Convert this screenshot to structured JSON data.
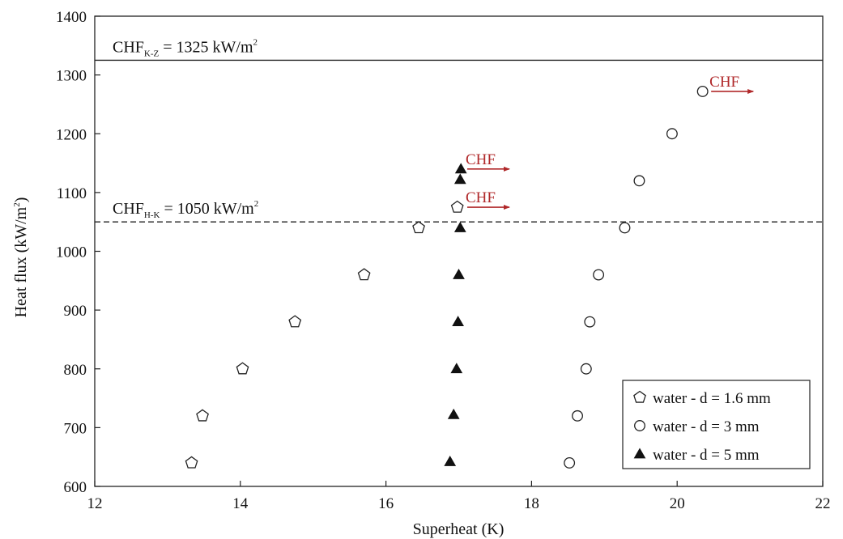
{
  "chart_data": {
    "type": "scatter",
    "xlabel": "Superheat (K)",
    "ylabel_main": "Heat flux (kW/m",
    "ylabel_sup": "2",
    "ylabel_end": ")",
    "xlim": [
      12,
      22
    ],
    "ylim": [
      600,
      1400
    ],
    "x_ticks": [
      "12",
      "14",
      "16",
      "18",
      "20",
      "22"
    ],
    "y_ticks": [
      "600",
      "700",
      "800",
      "900",
      "1000",
      "1100",
      "1200",
      "1300",
      "1400"
    ],
    "grid": false,
    "legend_position": "bottom-right",
    "series": [
      {
        "name": "water - d = 1.6 mm",
        "marker": "pentagon-open",
        "points": [
          [
            13.33,
            640
          ],
          [
            13.48,
            720
          ],
          [
            14.03,
            800
          ],
          [
            14.75,
            880
          ],
          [
            15.7,
            960
          ],
          [
            16.45,
            1040
          ],
          [
            16.98,
            1075
          ]
        ]
      },
      {
        "name": "water - d = 3 mm",
        "marker": "circle-open",
        "points": [
          [
            18.52,
            640
          ],
          [
            18.63,
            720
          ],
          [
            18.75,
            800
          ],
          [
            18.8,
            880
          ],
          [
            18.92,
            960
          ],
          [
            19.28,
            1040
          ],
          [
            19.48,
            1120
          ],
          [
            19.93,
            1200
          ],
          [
            20.35,
            1272
          ]
        ]
      },
      {
        "name": "water - d = 5 mm",
        "marker": "triangle-filled",
        "points": [
          [
            16.88,
            642
          ],
          [
            16.93,
            722
          ],
          [
            16.97,
            800
          ],
          [
            16.99,
            880
          ],
          [
            17.0,
            960
          ],
          [
            17.02,
            1040
          ],
          [
            17.02,
            1122
          ],
          [
            17.03,
            1140
          ]
        ]
      }
    ],
    "reference_lines": [
      {
        "y": 1325,
        "style": "solid",
        "label_main": "CHF",
        "label_sub": "K-Z",
        "label_eq": " = 1325 kW/m",
        "label_sup": "2"
      },
      {
        "y": 1050,
        "style": "dashed",
        "label_main": "CHF",
        "label_sub": "H-K",
        "label_eq": " = 1050 kW/m",
        "label_sup": "2"
      }
    ],
    "annotations": [
      {
        "text": "CHF",
        "x": 17.05,
        "y": 1140,
        "color": "#b0282a"
      },
      {
        "text": "CHF",
        "x": 17.05,
        "y": 1075,
        "color": "#b0282a"
      },
      {
        "text": "CHF",
        "x": 20.4,
        "y": 1272,
        "color": "#b0282a"
      }
    ]
  }
}
